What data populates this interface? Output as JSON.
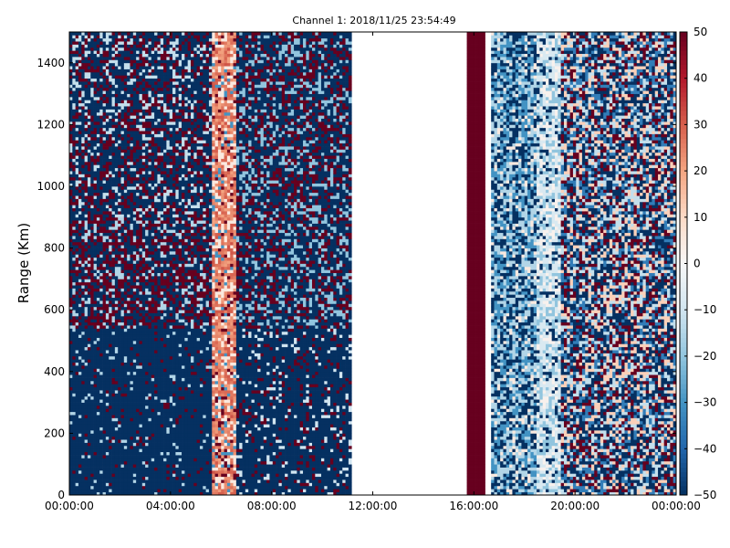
{
  "chart_data": {
    "type": "heatmap",
    "title": "Channel 1: 2018/11/25 23:54:49",
    "xlabel": "",
    "ylabel": "Range (Km)",
    "xlim": [
      "00:00:00",
      "24:00:00"
    ],
    "ylim": [
      0,
      1500
    ],
    "x_tick_labels": [
      "00:00:00",
      "04:00:00",
      "08:00:00",
      "12:00:00",
      "16:00:00",
      "20:00:00",
      "00:00:00"
    ],
    "x_tick_hours": [
      0,
      4,
      8,
      12,
      16,
      20,
      24
    ],
    "y_ticks": [
      0,
      200,
      400,
      600,
      800,
      1000,
      1200,
      1400
    ],
    "colorbar": {
      "vmin": -50,
      "vmax": 50,
      "ticks": [
        -50,
        -40,
        -30,
        -20,
        -10,
        0,
        10,
        20,
        30,
        40,
        50
      ],
      "colormap": "RdBu_r",
      "colors": [
        "#053061",
        "#2166ac",
        "#4393c3",
        "#92c5de",
        "#d1e5f0",
        "#f7f7f7",
        "#fddbc7",
        "#f4a582",
        "#d6604d",
        "#b2182b",
        "#67001f"
      ]
    },
    "data_gaps_hours": [
      [
        11.2,
        15.7
      ],
      [
        16.5,
        16.7
      ]
    ],
    "grid": false,
    "legend": "none"
  }
}
